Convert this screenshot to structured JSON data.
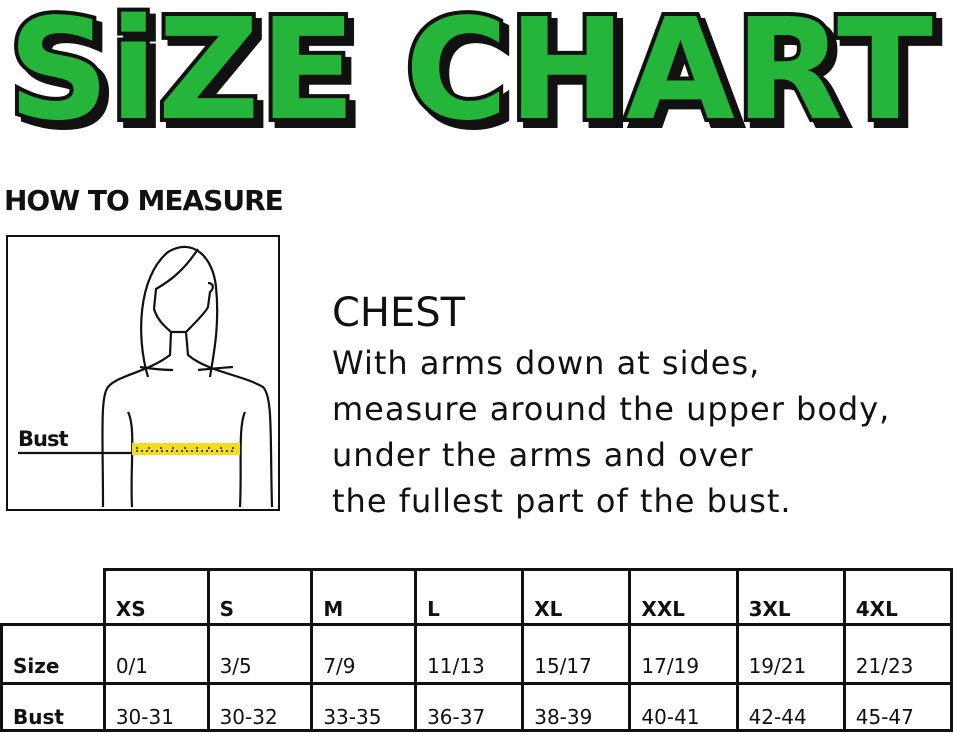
{
  "title": "SiZE CHART",
  "colors": {
    "title_fill": "#25b53b",
    "title_outline": "#111111",
    "tape": "#f2dc1c"
  },
  "how_to_measure": "HOW TO MEASURE",
  "figure": {
    "label": "Bust",
    "icon": "woman-silhouette-with-measuring-tape"
  },
  "chest": {
    "title": "CHEST",
    "lines": [
      "With arms down at sides,",
      "measure around the upper body,",
      "under the arms and over",
      "the fullest part of the bust."
    ]
  },
  "table": {
    "columns": [
      "XS",
      "S",
      "M",
      "L",
      "XL",
      "XXL",
      "3XL",
      "4XL"
    ],
    "rows": [
      {
        "label": "Size",
        "values": [
          "0/1",
          "3/5",
          "7/9",
          "11/13",
          "15/17",
          "17/19",
          "19/21",
          "21/23"
        ]
      },
      {
        "label": "Bust",
        "values": [
          "30-31",
          "30-32",
          "33-35",
          "36-37",
          "38-39",
          "40-41",
          "42-44",
          "45-47"
        ]
      }
    ]
  }
}
